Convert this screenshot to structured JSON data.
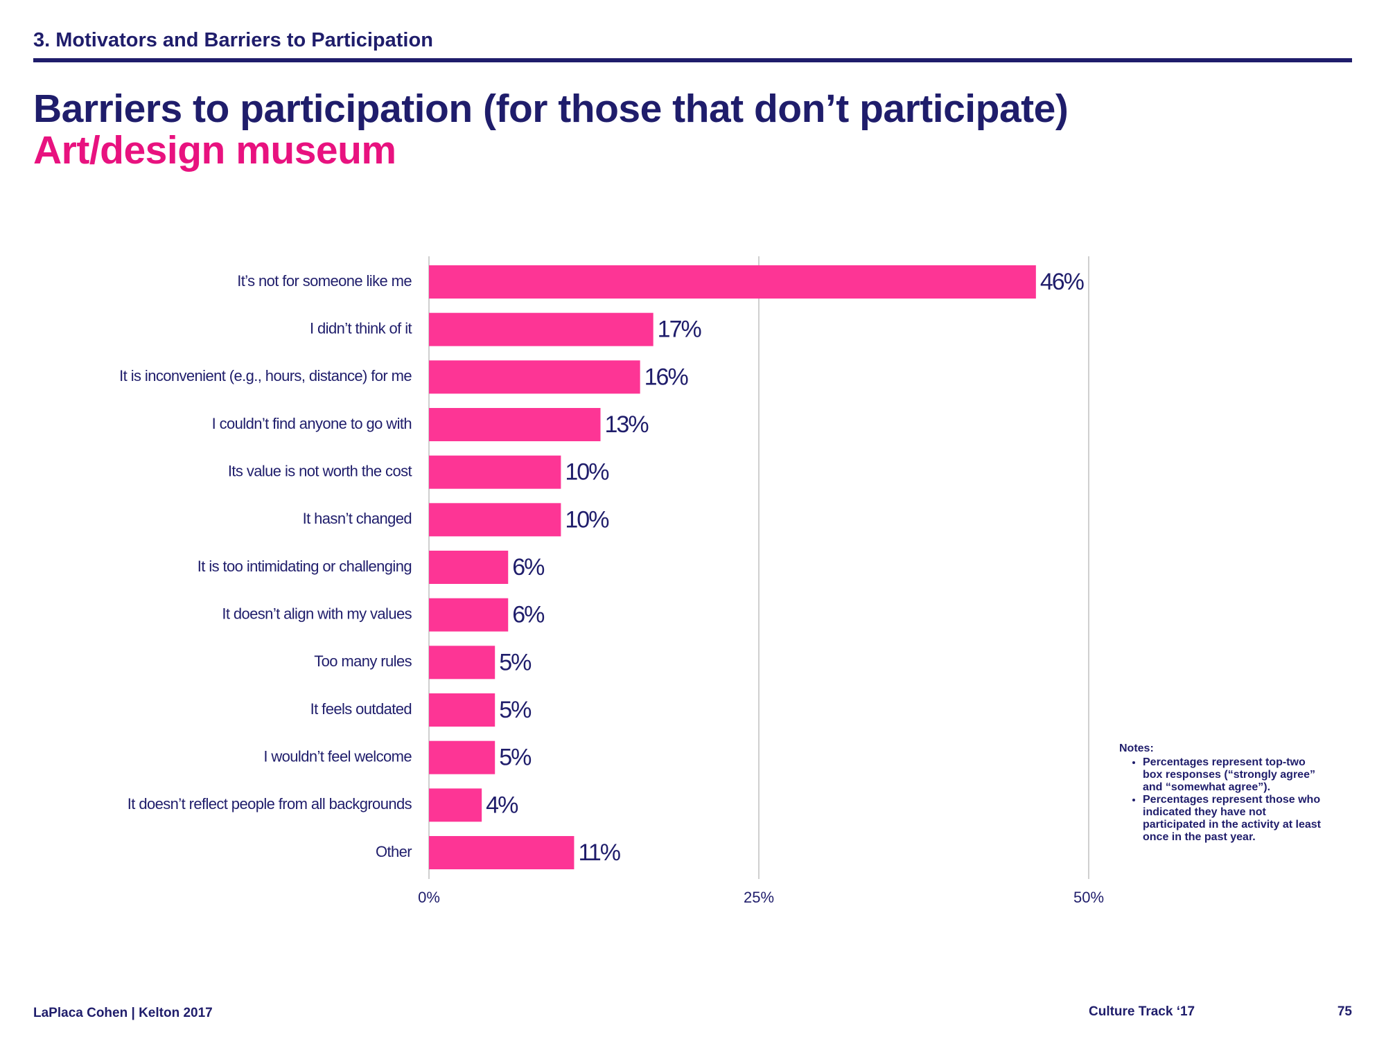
{
  "header": {
    "section": "3. Motivators and Barriers to Participation"
  },
  "chart_data": {
    "type": "bar",
    "orientation": "horizontal",
    "title": "Barriers to participation (for those that don’t participate)",
    "subtitle": "Art/design museum",
    "categories": [
      "It’s not for someone like me",
      "I didn’t think of it",
      "It is inconvenient (e.g., hours, distance) for me",
      "I couldn’t find anyone to go with",
      "Its value is not worth the cost",
      "It hasn’t changed",
      "It is too intimidating or challenging",
      "It doesn’t align with my values",
      "Too many rules",
      "It feels outdated",
      "I wouldn’t feel welcome",
      "It doesn’t reflect people from all backgrounds",
      "Other"
    ],
    "values": [
      46,
      17,
      16,
      13,
      10,
      10,
      6,
      6,
      5,
      5,
      5,
      4,
      11
    ],
    "value_labels": [
      "46%",
      "17%",
      "16%",
      "13%",
      "10%",
      "10%",
      "6%",
      "6%",
      "5%",
      "5%",
      "5%",
      "4%",
      "11%"
    ],
    "color": "#fd3595",
    "xlim": [
      0,
      50
    ],
    "xticks": [
      {
        "value": 0,
        "label": "0%"
      },
      {
        "value": 25,
        "label": "25%"
      },
      {
        "value": 50,
        "label": "50%"
      }
    ],
    "grid": true
  },
  "notes": {
    "title": "Notes:",
    "items": [
      "Percentages represent top-two box responses (“strongly agree” and “somewhat agree”).",
      "Percentages represent those who indicated they have not participated in the activity at least once in the past year."
    ]
  },
  "footer": {
    "source": "LaPlaca Cohen | Kelton 2017",
    "publication": "Culture Track ‘17",
    "page": "75"
  }
}
